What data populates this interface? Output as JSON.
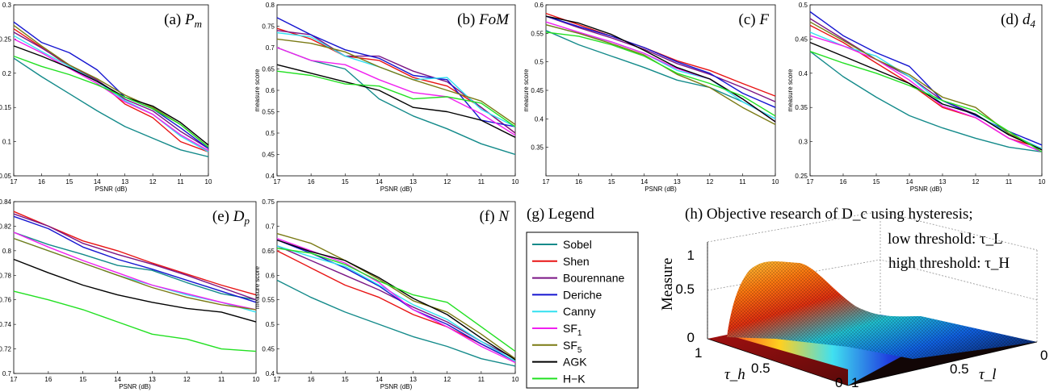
{
  "colors": {
    "Sobel": "#138a8a",
    "Shen": "#e81313",
    "Bourennane": "#7a1585",
    "Deriche": "#1515d0",
    "Canny": "#33e0f0",
    "SF1": "#f020f0",
    "SF5": "#7a7a14",
    "AGK": "#000000",
    "H-K": "#22e022"
  },
  "legend": {
    "title": "(g) Legend",
    "entries": [
      {
        "key": "Sobel",
        "label": "Sobel"
      },
      {
        "key": "Shen",
        "label": "Shen"
      },
      {
        "key": "Bourennane",
        "label": "Bourennane"
      },
      {
        "key": "Deriche",
        "label": "Deriche"
      },
      {
        "key": "Canny",
        "label": "Canny"
      },
      {
        "key": "SF1",
        "label": "SF",
        "sub": "1"
      },
      {
        "key": "SF5",
        "label": "SF",
        "sub": "5"
      },
      {
        "key": "AGK",
        "label": "AGK"
      },
      {
        "key": "H-K",
        "label": "H−K"
      }
    ]
  },
  "chart_data": [
    {
      "type": "line",
      "title": "(a) P_m",
      "xlabel": "PSNR (dB)",
      "ylabel": "measure score",
      "x": [
        17,
        16,
        15,
        14,
        13,
        12,
        11,
        10
      ],
      "xticks": [
        "17",
        "16",
        "15",
        "14",
        "13",
        "12",
        "11",
        "10"
      ],
      "ylim": [
        0.05,
        0.3
      ],
      "yticks": [
        "0.05",
        "0.1",
        "0.15",
        "0.2",
        "0.25",
        "0.3"
      ],
      "series": [
        {
          "name": "Sobel",
          "values": [
            0.222,
            0.195,
            0.17,
            0.145,
            0.122,
            0.105,
            0.088,
            0.078
          ]
        },
        {
          "name": "Shen",
          "values": [
            0.265,
            0.238,
            0.21,
            0.19,
            0.155,
            0.135,
            0.1,
            0.085
          ]
        },
        {
          "name": "Bourennane",
          "values": [
            0.26,
            0.237,
            0.212,
            0.19,
            0.162,
            0.145,
            0.115,
            0.09
          ]
        },
        {
          "name": "Deriche",
          "values": [
            0.275,
            0.245,
            0.23,
            0.205,
            0.165,
            0.148,
            0.12,
            0.09
          ]
        },
        {
          "name": "Canny",
          "values": [
            0.255,
            0.232,
            0.21,
            0.188,
            0.16,
            0.14,
            0.108,
            0.085
          ]
        },
        {
          "name": "SF1",
          "values": [
            0.25,
            0.23,
            0.207,
            0.185,
            0.158,
            0.14,
            0.11,
            0.087
          ]
        },
        {
          "name": "SF5",
          "values": [
            0.27,
            0.24,
            0.212,
            0.192,
            0.168,
            0.15,
            0.125,
            0.092
          ]
        },
        {
          "name": "AGK",
          "values": [
            0.24,
            0.225,
            0.208,
            0.188,
            0.165,
            0.152,
            0.128,
            0.095
          ]
        },
        {
          "name": "H-K",
          "values": [
            0.225,
            0.21,
            0.198,
            0.183,
            0.165,
            0.148,
            0.125,
            0.092
          ]
        }
      ]
    },
    {
      "type": "line",
      "title": "(b) FoM",
      "xlabel": "PSNR (dB)",
      "ylabel": "measure score",
      "x": [
        17,
        16,
        15,
        14,
        13,
        12,
        11,
        10
      ],
      "xticks": [
        "17",
        "16",
        "15",
        "14",
        "13",
        "12",
        "11",
        "10"
      ],
      "ylim": [
        0.4,
        0.8
      ],
      "yticks": [
        "0.4",
        "0.45",
        "0.5",
        "0.55",
        "0.6",
        "0.65",
        "0.7",
        "0.75",
        "0.8"
      ],
      "series": [
        {
          "name": "Sobel",
          "values": [
            0.7,
            0.67,
            0.65,
            0.58,
            0.54,
            0.51,
            0.475,
            0.45
          ]
        },
        {
          "name": "Shen",
          "values": [
            0.745,
            0.72,
            0.68,
            0.67,
            0.63,
            0.61,
            0.56,
            0.5
          ]
        },
        {
          "name": "Bourennane",
          "values": [
            0.74,
            0.73,
            0.68,
            0.68,
            0.645,
            0.62,
            0.56,
            0.5
          ]
        },
        {
          "name": "Deriche",
          "values": [
            0.77,
            0.73,
            0.695,
            0.675,
            0.635,
            0.625,
            0.53,
            0.515
          ]
        },
        {
          "name": "Canny",
          "values": [
            0.735,
            0.725,
            0.68,
            0.655,
            0.625,
            0.63,
            0.555,
            0.515
          ]
        },
        {
          "name": "SF1",
          "values": [
            0.7,
            0.67,
            0.66,
            0.625,
            0.595,
            0.585,
            0.545,
            0.495
          ]
        },
        {
          "name": "SF5",
          "values": [
            0.72,
            0.71,
            0.69,
            0.655,
            0.625,
            0.6,
            0.575,
            0.52
          ]
        },
        {
          "name": "AGK",
          "values": [
            0.66,
            0.64,
            0.62,
            0.6,
            0.56,
            0.55,
            0.53,
            0.49
          ]
        },
        {
          "name": "H-K",
          "values": [
            0.645,
            0.635,
            0.615,
            0.61,
            0.58,
            0.585,
            0.57,
            0.515
          ]
        }
      ]
    },
    {
      "type": "line",
      "title": "(c) F",
      "xlabel": "PSNR (dB)",
      "ylabel": "measure score",
      "x": [
        17,
        16,
        15,
        14,
        13,
        12,
        11,
        10
      ],
      "xticks": [
        "17",
        "16",
        "15",
        "14",
        "13",
        "12",
        "11",
        "10"
      ],
      "ylim": [
        0.3,
        0.6
      ],
      "yticks": [
        "0.35",
        "0.4",
        "0.45",
        "0.5",
        "0.55",
        "0.6"
      ],
      "series": [
        {
          "name": "Sobel",
          "values": [
            0.555,
            0.53,
            0.51,
            0.49,
            0.468,
            0.455,
            0.43,
            0.4
          ]
        },
        {
          "name": "Shen",
          "values": [
            0.585,
            0.565,
            0.545,
            0.525,
            0.502,
            0.485,
            0.462,
            0.44
          ]
        },
        {
          "name": "Bourennane",
          "values": [
            0.58,
            0.56,
            0.542,
            0.522,
            0.497,
            0.478,
            0.455,
            0.43
          ]
        },
        {
          "name": "Deriche",
          "values": [
            0.58,
            0.562,
            0.545,
            0.525,
            0.5,
            0.48,
            0.445,
            0.42
          ]
        },
        {
          "name": "Canny",
          "values": [
            0.565,
            0.55,
            0.535,
            0.515,
            0.485,
            0.47,
            0.43,
            0.4
          ]
        },
        {
          "name": "SF1",
          "values": [
            0.57,
            0.552,
            0.535,
            0.515,
            0.488,
            0.47,
            0.435,
            0.395
          ]
        },
        {
          "name": "SF5",
          "values": [
            0.565,
            0.55,
            0.532,
            0.512,
            0.478,
            0.455,
            0.42,
            0.39
          ]
        },
        {
          "name": "AGK",
          "values": [
            0.58,
            0.568,
            0.548,
            0.52,
            0.49,
            0.47,
            0.435,
            0.395
          ]
        },
        {
          "name": "H-K",
          "values": [
            0.552,
            0.545,
            0.53,
            0.51,
            0.48,
            0.462,
            0.44,
            0.405
          ]
        }
      ]
    },
    {
      "type": "line",
      "title": "(d) d_4",
      "xlabel": "PSNR (dB)",
      "ylabel": "measure score",
      "x": [
        17,
        16,
        15,
        14,
        13,
        12,
        11,
        10
      ],
      "xticks": [
        "17",
        "16",
        "15",
        "14",
        "13",
        "12",
        "11",
        "10"
      ],
      "ylim": [
        0.25,
        0.5
      ],
      "yticks": [
        "0.25",
        "0.3",
        "0.35",
        "0.4",
        "0.45",
        "0.5"
      ],
      "series": [
        {
          "name": "Sobel",
          "values": [
            0.432,
            0.395,
            0.365,
            0.338,
            0.32,
            0.305,
            0.292,
            0.285
          ]
        },
        {
          "name": "Shen",
          "values": [
            0.47,
            0.445,
            0.415,
            0.385,
            0.35,
            0.335,
            0.305,
            0.29
          ]
        },
        {
          "name": "Bourennane",
          "values": [
            0.48,
            0.45,
            0.42,
            0.395,
            0.36,
            0.34,
            0.31,
            0.29
          ]
        },
        {
          "name": "Deriche",
          "values": [
            0.49,
            0.455,
            0.43,
            0.41,
            0.36,
            0.338,
            0.315,
            0.295
          ]
        },
        {
          "name": "Canny",
          "values": [
            0.46,
            0.44,
            0.425,
            0.395,
            0.355,
            0.34,
            0.312,
            0.29
          ]
        },
        {
          "name": "SF1",
          "values": [
            0.455,
            0.44,
            0.42,
            0.39,
            0.352,
            0.335,
            0.305,
            0.285
          ]
        },
        {
          "name": "SF5",
          "values": [
            0.475,
            0.448,
            0.42,
            0.398,
            0.365,
            0.35,
            0.312,
            0.288
          ]
        },
        {
          "name": "AGK",
          "values": [
            0.445,
            0.425,
            0.405,
            0.385,
            0.355,
            0.34,
            0.31,
            0.288
          ]
        },
        {
          "name": "H-K",
          "values": [
            0.432,
            0.415,
            0.4,
            0.382,
            0.36,
            0.345,
            0.315,
            0.285
          ]
        }
      ]
    },
    {
      "type": "line",
      "title": "(e) D_p",
      "xlabel": "PSNR (dB)",
      "ylabel": "measure score",
      "x": [
        17,
        16,
        15,
        14,
        13,
        12,
        11,
        10
      ],
      "xticks": [
        "17",
        "16",
        "15",
        "14",
        "13",
        "12",
        "11",
        "10"
      ],
      "ylim": [
        0.7,
        0.84
      ],
      "yticks": [
        "0.7",
        "0.72",
        "0.74",
        "0.76",
        "0.78",
        "0.8",
        "0.82",
        "0.84"
      ],
      "series": [
        {
          "name": "Sobel",
          "values": [
            0.815,
            0.805,
            0.797,
            0.788,
            0.784,
            0.774,
            0.765,
            0.76
          ]
        },
        {
          "name": "Shen",
          "values": [
            0.832,
            0.82,
            0.808,
            0.8,
            0.79,
            0.781,
            0.772,
            0.764
          ]
        },
        {
          "name": "Bourennane",
          "values": [
            0.83,
            0.82,
            0.806,
            0.797,
            0.789,
            0.78,
            0.77,
            0.76
          ]
        },
        {
          "name": "Deriche",
          "values": [
            0.828,
            0.818,
            0.803,
            0.793,
            0.785,
            0.776,
            0.767,
            0.758
          ]
        },
        {
          "name": "Canny",
          "values": [
            0.81,
            0.8,
            0.79,
            0.78,
            0.772,
            0.764,
            0.758,
            0.75
          ]
        },
        {
          "name": "SF1",
          "values": [
            0.815,
            0.803,
            0.792,
            0.782,
            0.772,
            0.765,
            0.758,
            0.752
          ]
        },
        {
          "name": "SF5",
          "values": [
            0.81,
            0.8,
            0.79,
            0.78,
            0.77,
            0.762,
            0.756,
            0.752
          ]
        },
        {
          "name": "AGK",
          "values": [
            0.793,
            0.782,
            0.772,
            0.764,
            0.758,
            0.753,
            0.75,
            0.742
          ]
        },
        {
          "name": "H-K",
          "values": [
            0.767,
            0.76,
            0.752,
            0.742,
            0.732,
            0.728,
            0.72,
            0.718
          ]
        }
      ]
    },
    {
      "type": "line",
      "title": "(f) N",
      "xlabel": "PSNR (dB)",
      "ylabel": "measure score",
      "x": [
        17,
        16,
        15,
        14,
        13,
        12,
        11,
        10
      ],
      "xticks": [
        "17",
        "16",
        "15",
        "14",
        "13",
        "12",
        "11",
        "10"
      ],
      "ylim": [
        0.4,
        0.75
      ],
      "yticks": [
        "0.4",
        "0.45",
        "0.5",
        "0.55",
        "0.6",
        "0.65",
        "0.7",
        "0.75"
      ],
      "series": [
        {
          "name": "Sobel",
          "values": [
            0.59,
            0.555,
            0.525,
            0.5,
            0.475,
            0.455,
            0.43,
            0.415
          ]
        },
        {
          "name": "Shen",
          "values": [
            0.65,
            0.615,
            0.58,
            0.555,
            0.52,
            0.495,
            0.46,
            0.425
          ]
        },
        {
          "name": "Bourennane",
          "values": [
            0.66,
            0.63,
            0.6,
            0.57,
            0.535,
            0.505,
            0.465,
            0.43
          ]
        },
        {
          "name": "Deriche",
          "values": [
            0.672,
            0.645,
            0.615,
            0.578,
            0.53,
            0.5,
            0.46,
            0.425
          ]
        },
        {
          "name": "Canny",
          "values": [
            0.66,
            0.638,
            0.618,
            0.58,
            0.54,
            0.51,
            0.465,
            0.425
          ]
        },
        {
          "name": "SF1",
          "values": [
            0.675,
            0.65,
            0.625,
            0.585,
            0.53,
            0.495,
            0.455,
            0.422
          ]
        },
        {
          "name": "SF5",
          "values": [
            0.685,
            0.665,
            0.63,
            0.592,
            0.548,
            0.525,
            0.48,
            0.43
          ]
        },
        {
          "name": "AGK",
          "values": [
            0.672,
            0.648,
            0.63,
            0.595,
            0.553,
            0.52,
            0.472,
            0.428
          ]
        },
        {
          "name": "H-K",
          "values": [
            0.655,
            0.645,
            0.622,
            0.588,
            0.56,
            0.545,
            0.495,
            0.445
          ]
        }
      ]
    }
  ],
  "surface_panel": {
    "title_line1": "(h) Objective research of D_c using hysteresis;",
    "title_line2": "low threshold: τ_L",
    "title_line3": "high threshold: τ_H",
    "zlabel": "Measure",
    "zticks": [
      "0",
      "0.5",
      "1"
    ],
    "tau_h_label": "τ_h",
    "tau_l_label": "τ_l",
    "tau_h_ticks": [
      "1",
      "0.5",
      "0"
    ],
    "tau_l_ticks": [
      "1",
      "0.5",
      "0"
    ]
  }
}
